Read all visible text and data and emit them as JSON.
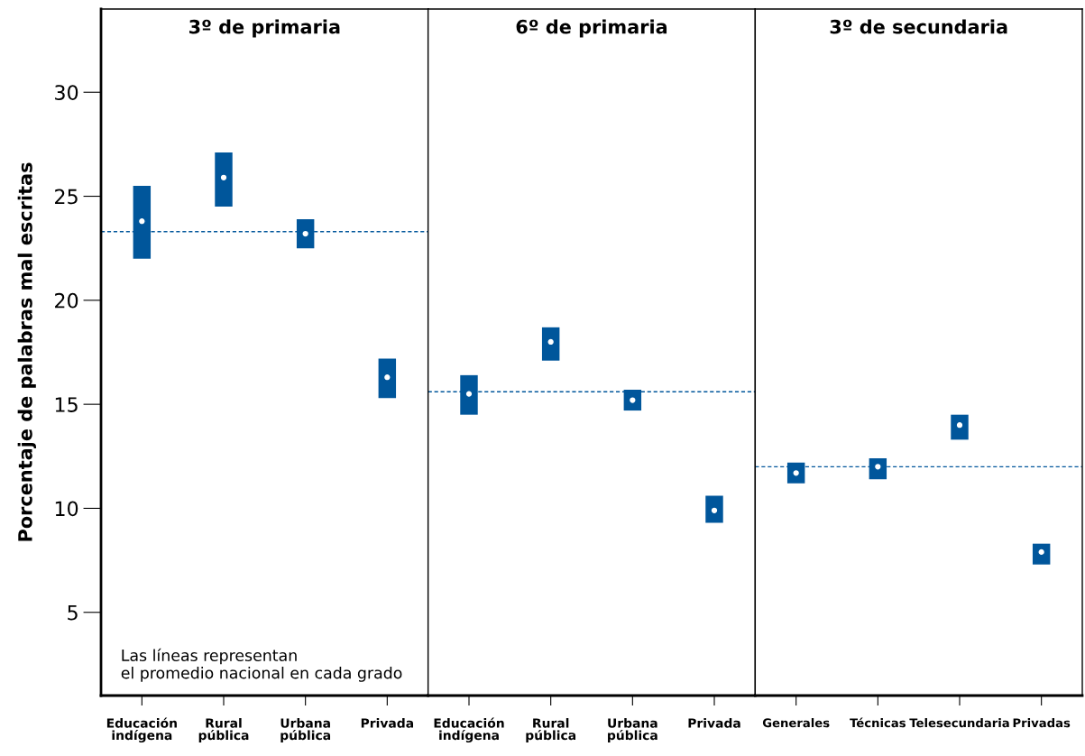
{
  "chart_data": [
    {
      "type": "scatter",
      "title": "3º de primaria",
      "ylabel": "Porcentaje de palabras mal escritas",
      "categories": [
        "Educación\nindígena",
        "Rural\npública",
        "Urbana\npública",
        "Privada"
      ],
      "values": [
        23.8,
        25.9,
        23.2,
        16.3
      ],
      "errors": [
        [
          22.0,
          25.5
        ],
        [
          24.5,
          27.1
        ],
        [
          22.5,
          23.9
        ],
        [
          15.3,
          17.2
        ]
      ],
      "color": "#00569b",
      "marker": "circle",
      "ylim": [
        1,
        34
      ],
      "yticks": [
        5,
        10,
        15,
        20,
        25,
        30
      ],
      "grid": false,
      "ref_lines": [
        {
          "axis": "y",
          "value": 23.3,
          "color": "#00569b",
          "line_style": "dashed"
        }
      ],
      "annotations": [
        "Las líneas representan\nel promedio nacional en cada grado"
      ]
    },
    {
      "type": "scatter",
      "title": "6º de primaria",
      "categories": [
        "Educación\nindígena",
        "Rural\npública",
        "Urbana\npública",
        "Privada"
      ],
      "values": [
        15.5,
        18.0,
        15.2,
        9.9
      ],
      "errors": [
        [
          14.5,
          16.4
        ],
        [
          17.1,
          18.7
        ],
        [
          14.7,
          15.7
        ],
        [
          9.3,
          10.6
        ]
      ],
      "color": "#00569b",
      "marker": "circle",
      "ylim": [
        1,
        34
      ],
      "tick_labels": "x",
      "grid": false,
      "ref_lines": [
        {
          "axis": "y",
          "value": 15.6,
          "color": "#00569b",
          "line_style": "dashed"
        }
      ]
    },
    {
      "type": "scatter",
      "title": "3º de secundaria",
      "categories": [
        "Generales",
        "Técnicas",
        "Telesecundaria",
        "Privadas"
      ],
      "values": [
        11.7,
        12.0,
        14.0,
        7.9
      ],
      "errors": [
        [
          11.2,
          12.2
        ],
        [
          11.4,
          12.4
        ],
        [
          13.3,
          14.5
        ],
        [
          7.3,
          8.3
        ]
      ],
      "color": "#00569b",
      "marker": "circle",
      "ylim": [
        1,
        34
      ],
      "tick_labels": "x",
      "grid": false,
      "ref_lines": [
        {
          "axis": "y",
          "value": 12.0,
          "color": "#00569b",
          "line_style": "dashed"
        }
      ]
    }
  ]
}
